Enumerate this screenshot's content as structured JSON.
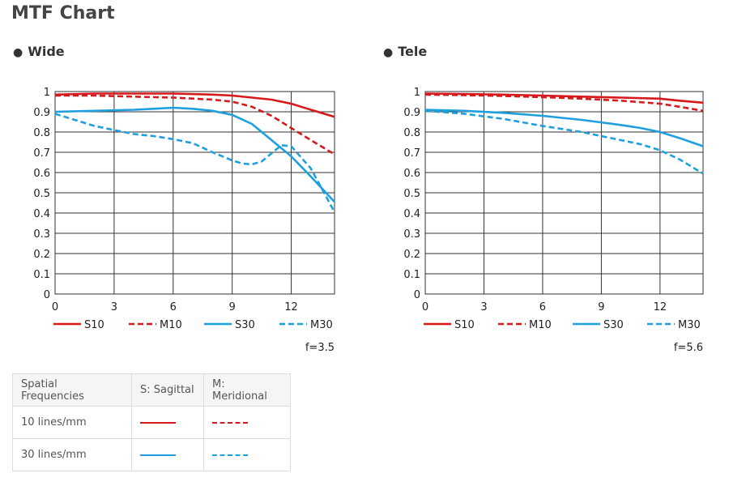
{
  "title": "MTF Chart",
  "charts_meta": [
    {
      "bullet": "●",
      "label": "Wide"
    },
    {
      "bullet": "●",
      "label": "Tele"
    }
  ],
  "colors": {
    "s10": "#d7191c",
    "m10": "#d7191c",
    "s30": "#1ea0df",
    "m30": "#1ea0df",
    "grid": "#333333"
  },
  "chart_data": [
    {
      "type": "line",
      "title": "Wide",
      "aperture": "f=3.5",
      "xlim": [
        0,
        14.2
      ],
      "ylim": [
        0,
        1
      ],
      "xticks": [
        0,
        3,
        6,
        9,
        12
      ],
      "yticks": [
        0,
        0.1,
        0.2,
        0.3,
        0.4,
        0.5,
        0.6,
        0.7,
        0.8,
        0.9,
        1
      ],
      "ytick_labels": [
        "0",
        "0.1",
        "0.2",
        "0.3",
        "0.4",
        "0.5",
        "0.6",
        "0.7",
        "0.8",
        "0.9",
        "1"
      ],
      "grid": true,
      "legend": "bottom",
      "series": [
        {
          "name": "S10",
          "key": "s10",
          "style": "solid",
          "x": [
            0,
            2,
            4,
            6,
            8,
            9,
            10,
            11,
            12,
            13,
            14.2
          ],
          "y": [
            0.985,
            0.99,
            0.99,
            0.99,
            0.985,
            0.98,
            0.97,
            0.96,
            0.94,
            0.91,
            0.875
          ]
        },
        {
          "name": "M10",
          "key": "m10",
          "style": "dashed",
          "x": [
            0,
            2,
            4,
            6,
            8,
            9,
            10,
            11,
            12,
            13,
            14.2
          ],
          "y": [
            0.98,
            0.98,
            0.975,
            0.97,
            0.96,
            0.95,
            0.925,
            0.88,
            0.82,
            0.76,
            0.69
          ]
        },
        {
          "name": "S30",
          "key": "s30",
          "style": "solid",
          "x": [
            0,
            2,
            4,
            5,
            6,
            7,
            8,
            9,
            10,
            11,
            12,
            13,
            14.2
          ],
          "y": [
            0.9,
            0.905,
            0.91,
            0.915,
            0.92,
            0.915,
            0.905,
            0.885,
            0.84,
            0.76,
            0.68,
            0.58,
            0.455
          ]
        },
        {
          "name": "M30",
          "key": "m30",
          "style": "dashed",
          "x": [
            0,
            1,
            2,
            3,
            4,
            5,
            6,
            7,
            8,
            9,
            9.5,
            10,
            10.5,
            11,
            11.5,
            12,
            13,
            14.2
          ],
          "y": [
            0.89,
            0.86,
            0.83,
            0.81,
            0.79,
            0.78,
            0.765,
            0.745,
            0.7,
            0.66,
            0.645,
            0.64,
            0.655,
            0.695,
            0.735,
            0.73,
            0.62,
            0.405
          ]
        }
      ]
    },
    {
      "type": "line",
      "title": "Tele",
      "aperture": "f=5.6",
      "xlim": [
        0,
        14.2
      ],
      "ylim": [
        0,
        1
      ],
      "xticks": [
        0,
        3,
        6,
        9,
        12
      ],
      "yticks": [
        0,
        0.1,
        0.2,
        0.3,
        0.4,
        0.5,
        0.6,
        0.7,
        0.8,
        0.9,
        1
      ],
      "ytick_labels": [
        "0",
        "0.1",
        "0.2",
        "0.3",
        "0.4",
        "0.5",
        "0.6",
        "0.7",
        "0.8",
        "0.9",
        "1"
      ],
      "grid": true,
      "legend": "bottom",
      "series": [
        {
          "name": "S10",
          "key": "s10",
          "style": "solid",
          "x": [
            0,
            2,
            4,
            6,
            8,
            10,
            12,
            13,
            14.2
          ],
          "y": [
            0.99,
            0.988,
            0.985,
            0.98,
            0.975,
            0.97,
            0.965,
            0.955,
            0.945
          ]
        },
        {
          "name": "M10",
          "key": "m10",
          "style": "dashed",
          "x": [
            0,
            2,
            4,
            6,
            8,
            10,
            12,
            13,
            14.2
          ],
          "y": [
            0.985,
            0.982,
            0.978,
            0.972,
            0.965,
            0.955,
            0.94,
            0.925,
            0.905
          ]
        },
        {
          "name": "S30",
          "key": "s30",
          "style": "solid",
          "x": [
            0,
            2,
            4,
            6,
            8,
            10,
            11,
            12,
            13,
            14.2
          ],
          "y": [
            0.91,
            0.905,
            0.895,
            0.88,
            0.86,
            0.835,
            0.82,
            0.8,
            0.77,
            0.73
          ]
        },
        {
          "name": "M30",
          "key": "m30",
          "style": "dashed",
          "x": [
            0,
            2,
            4,
            6,
            8,
            10,
            11,
            12,
            13,
            14.2
          ],
          "y": [
            0.905,
            0.89,
            0.865,
            0.83,
            0.8,
            0.76,
            0.74,
            0.71,
            0.665,
            0.595
          ]
        }
      ]
    }
  ],
  "legend_table": {
    "headers": [
      "Spatial Frequencies",
      "S: Sagittal",
      "M: Meridional"
    ],
    "rows": [
      {
        "label": "10 lines/mm",
        "s_color": "#d7191c",
        "m_color": "#d7191c"
      },
      {
        "label": "30 lines/mm",
        "s_color": "#1ea0df",
        "m_color": "#1ea0df"
      }
    ]
  }
}
